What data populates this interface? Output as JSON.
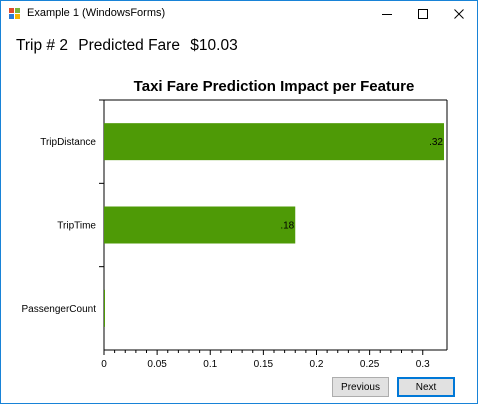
{
  "window": {
    "title": "Example 1 (WindowsForms)"
  },
  "titlebar_icons": [
    "minimize-icon",
    "maximize-icon",
    "close-icon"
  ],
  "header": {
    "trip_label": "Trip # 2",
    "fare_label": "Predicted Fare",
    "fare_value": "$10.03"
  },
  "chart_data": {
    "type": "bar",
    "orientation": "horizontal",
    "title": "Taxi Fare Prediction Impact per Feature",
    "categories": [
      "TripDistance",
      "TripTime",
      "PassengerCount"
    ],
    "values": [
      0.32,
      0.18,
      0.0
    ],
    "data_labels": [
      ".32",
      ".18",
      ""
    ],
    "xlim": [
      0,
      0.32
    ],
    "xticks": [
      0,
      0.05,
      0.1,
      0.15,
      0.2,
      0.25,
      0.3
    ],
    "xtick_labels": [
      "0",
      "0.05",
      "0.1",
      "0.15",
      "0.2",
      "0.25",
      "0.3"
    ],
    "bar_color": "#4e9a06",
    "grid": false
  },
  "buttons": {
    "previous": "Previous",
    "next": "Next"
  }
}
